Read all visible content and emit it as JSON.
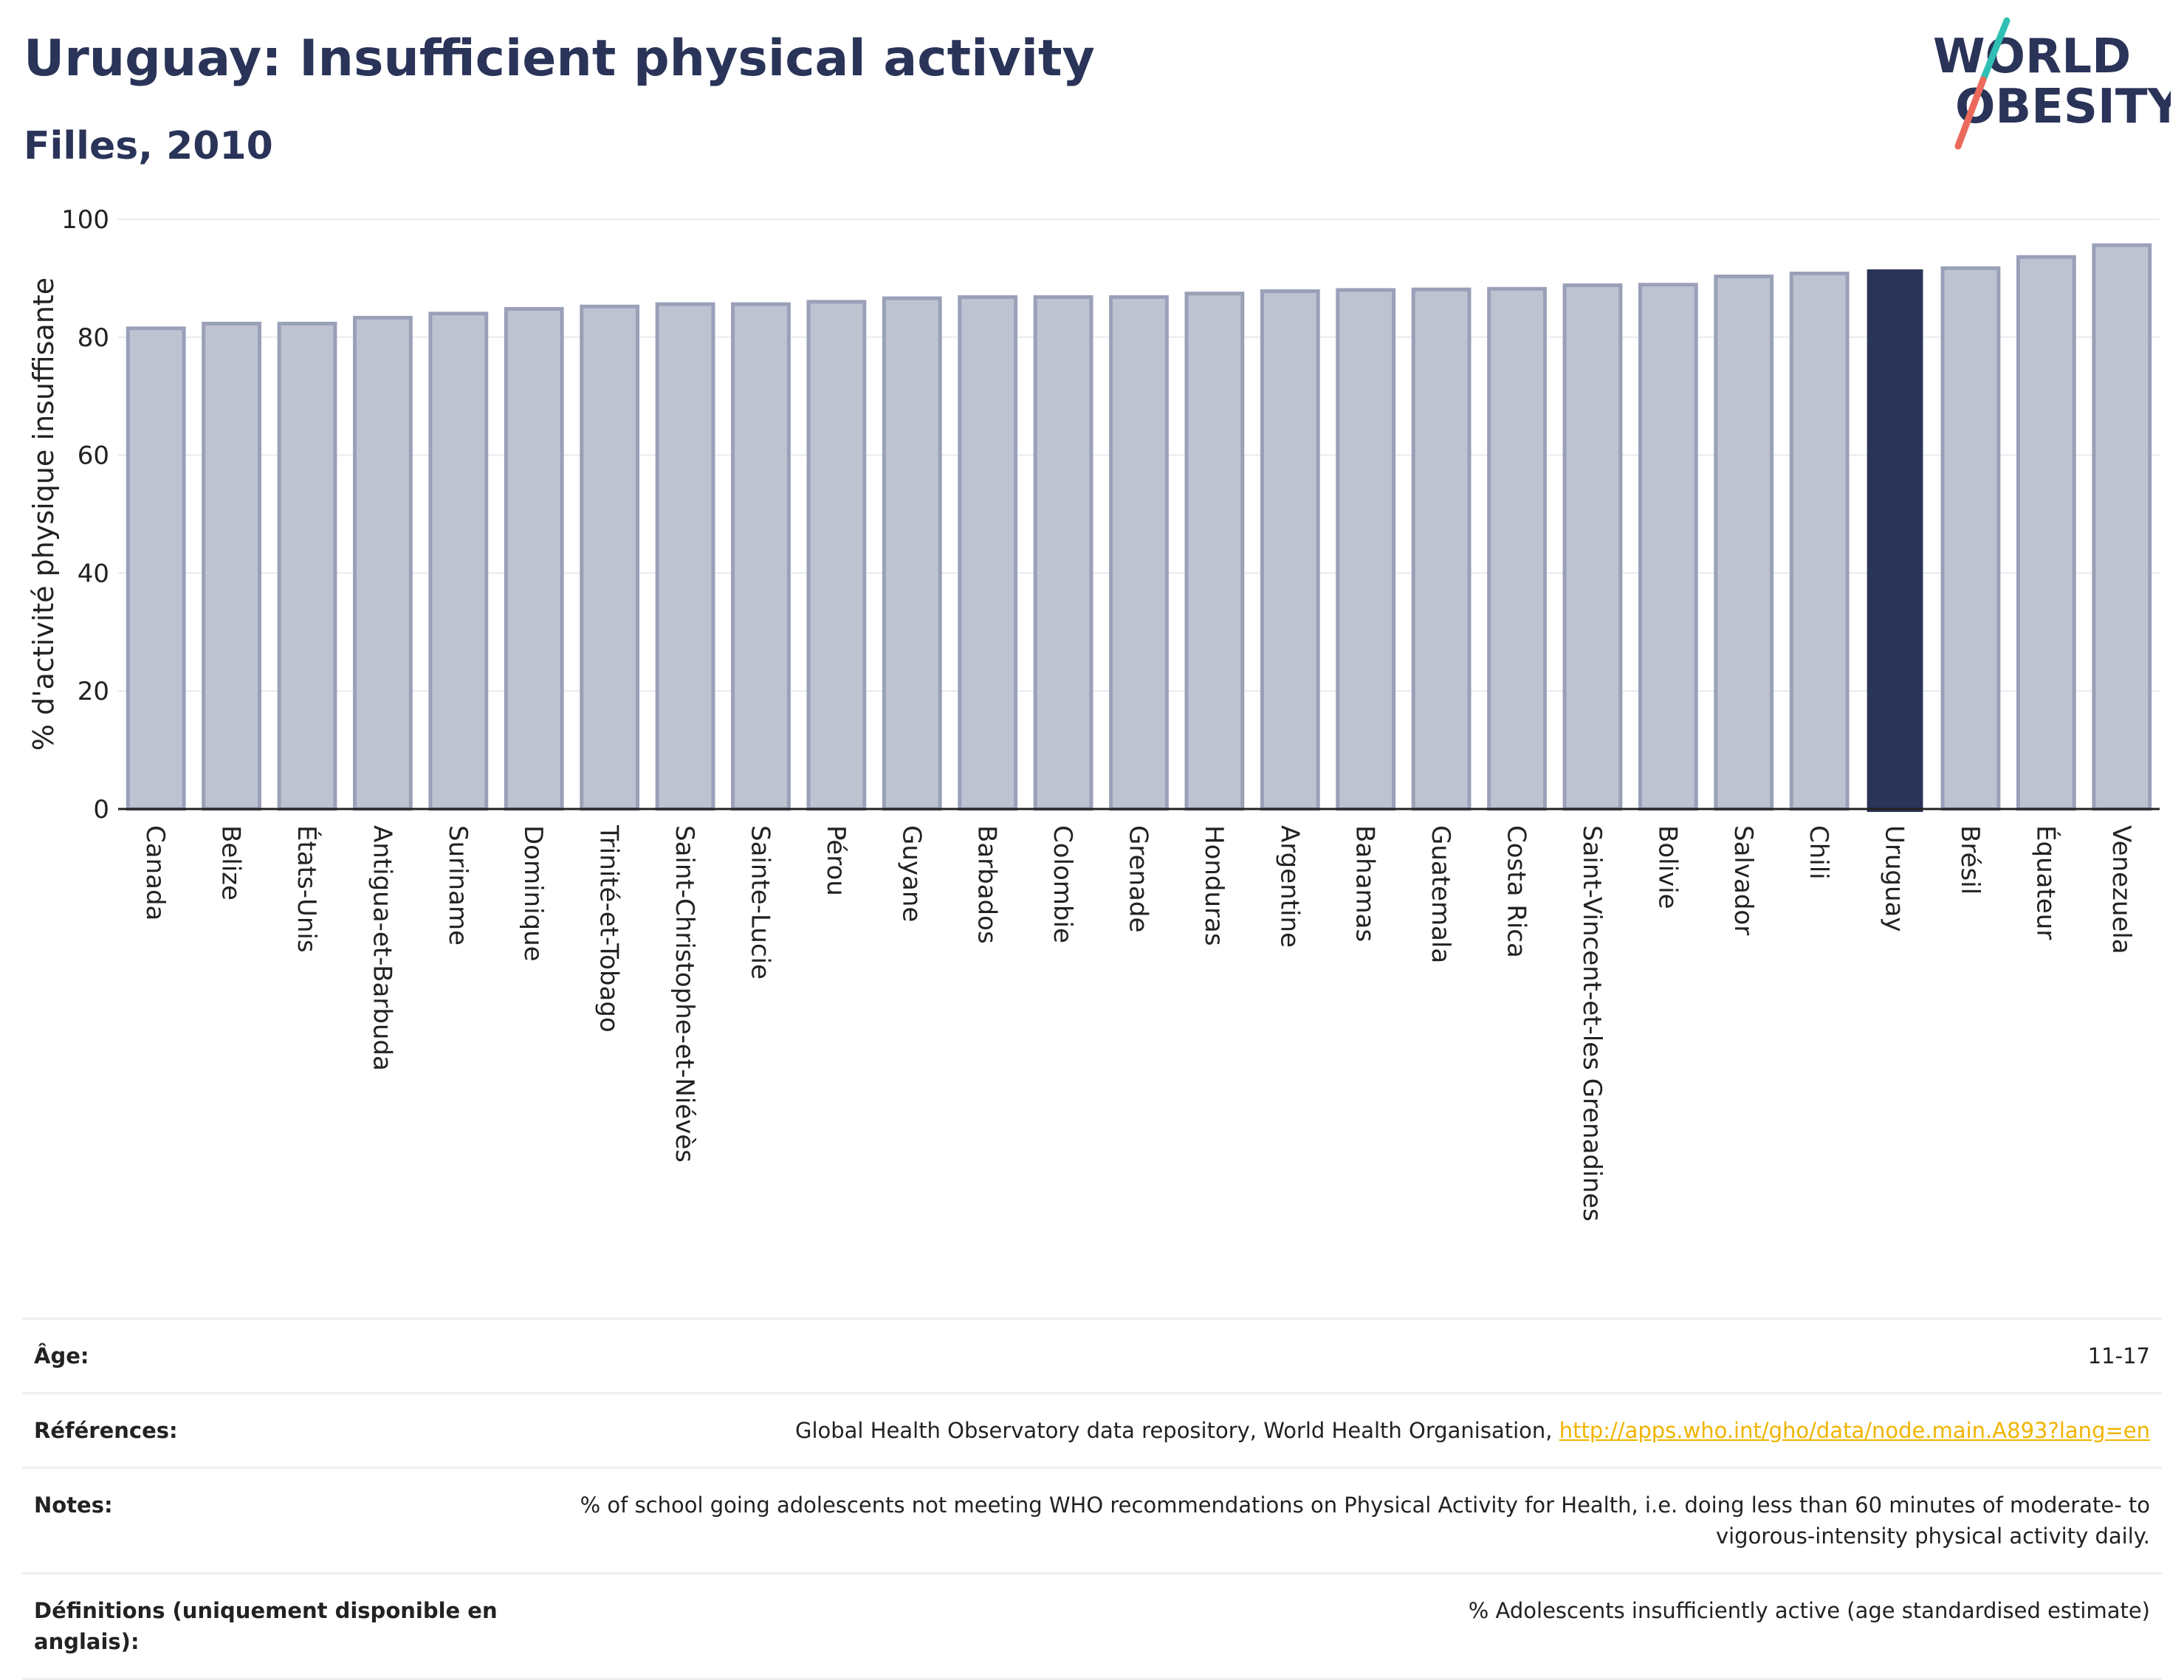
{
  "header": {
    "title": "Uruguay: Insufficient physical activity",
    "subtitle": "Filles, 2010"
  },
  "logo": {
    "line1": "WORLD",
    "line2": "OBESITY",
    "slash_color_top": "#2fc0b3",
    "slash_color_bottom": "#ec6a5c"
  },
  "colors": {
    "bar_default_fill": "#bfc3d1",
    "bar_default_stroke": "#9aa0b8",
    "bar_highlight": "#2a3358",
    "grid": "#e8eaf0",
    "axis": "#222222",
    "link": "#f0b400"
  },
  "chart_data": {
    "type": "bar",
    "title": "Uruguay: Insufficient physical activity",
    "subtitle": "Filles, 2010",
    "xlabel": "",
    "ylabel": "% d'activité physique insuffisante",
    "ylim": [
      0,
      100
    ],
    "yticks": [
      0,
      20,
      40,
      60,
      80,
      100
    ],
    "grid": true,
    "highlight": "Uruguay",
    "categories": [
      "Canada",
      "Belize",
      "États-Unis",
      "Antigua-et-Barbuda",
      "Suriname",
      "Dominique",
      "Trinité-et-Tobago",
      "Saint-Christophe-et-Niévès",
      "Sainte-Lucie",
      "Pérou",
      "Guyane",
      "Barbados",
      "Colombie",
      "Grenade",
      "Honduras",
      "Argentine",
      "Bahamas",
      "Guatemala",
      "Costa Rica",
      "Saint-Vincent-et-les Grenadines",
      "Bolivie",
      "Salvador",
      "Chili",
      "Uruguay",
      "Brésil",
      "Équateur",
      "Venezuela"
    ],
    "values": [
      81.5,
      82.3,
      82.3,
      83.3,
      84.0,
      84.8,
      85.2,
      85.6,
      85.6,
      86.0,
      86.6,
      86.8,
      86.8,
      86.8,
      87.4,
      87.8,
      88.0,
      88.1,
      88.2,
      88.8,
      88.9,
      90.3,
      90.8,
      91.5,
      91.7,
      93.6,
      95.6
    ]
  },
  "info": {
    "rows": [
      {
        "key": "Âge:",
        "value": "11-17",
        "link": ""
      },
      {
        "key": "Références:",
        "value": "Global Health Observatory data repository, World Health Organisation, ",
        "link": "http://apps.who.int/gho/data/node.main.A893?lang=en"
      },
      {
        "key": "Notes:",
        "value": "% of school going adolescents not meeting WHO recommendations on Physical Activity for Health, i.e. doing less than 60 minutes of moderate- to vigorous-intensity physical activity daily.",
        "link": ""
      },
      {
        "key": "Définitions (uniquement disponible en anglais):",
        "value": "% Adolescents insufficiently active (age standardised estimate)",
        "link": ""
      }
    ]
  }
}
